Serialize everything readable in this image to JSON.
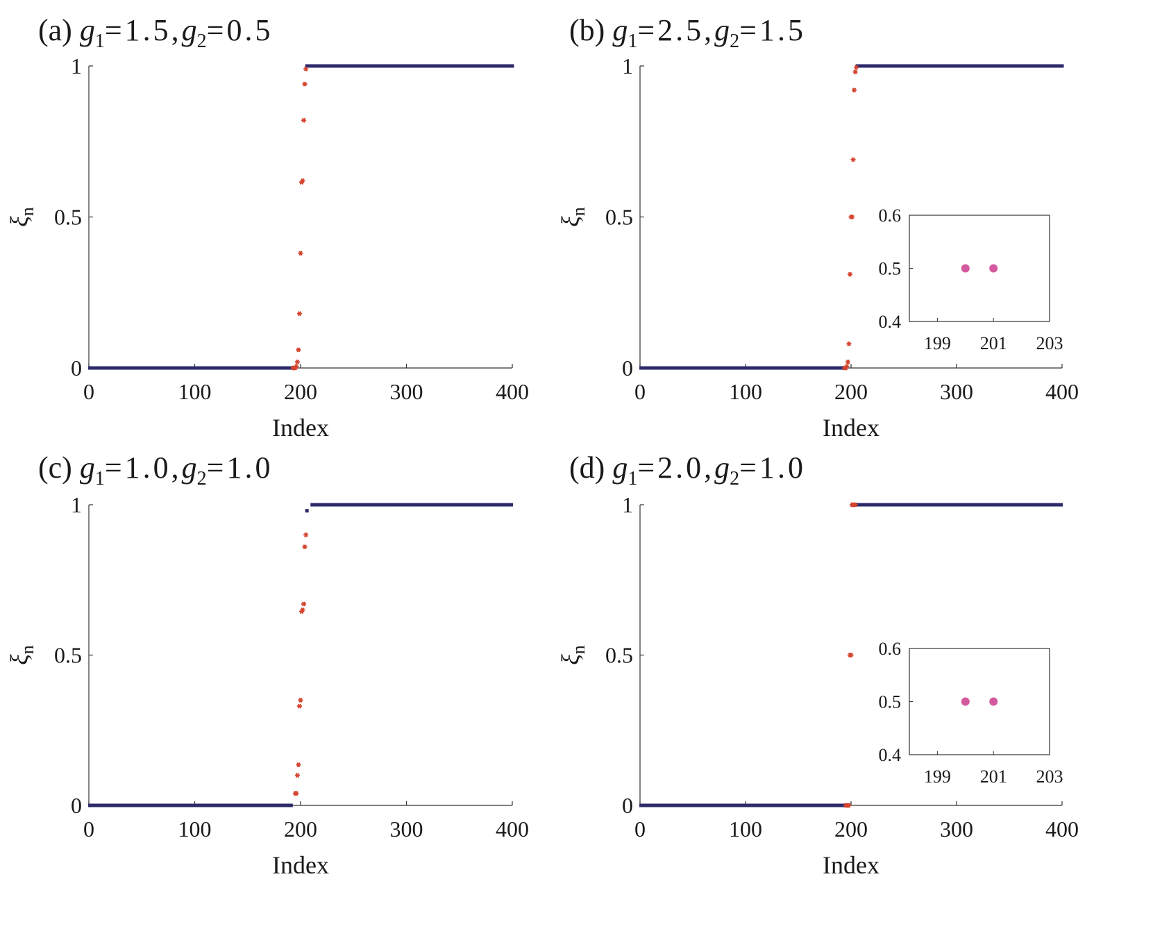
{
  "colors": {
    "bulk": "#2d2a6b",
    "edge": "#d4452f",
    "inset": "#d35a9e",
    "axis": "#333333"
  },
  "chart_data": [
    {
      "type": "scatter",
      "panel": "(a)",
      "title_parts": [
        "(a)",
        "g",
        "1",
        "=1.5,",
        "g",
        "2",
        "=0.5"
      ],
      "xlabel": "Index",
      "ylabel": "ξ",
      "ylabel_sub": "n",
      "xlim": [
        0,
        400
      ],
      "ylim": [
        0,
        1
      ],
      "xticks": [
        "0",
        "100",
        "200",
        "300",
        "400"
      ],
      "yticks": [
        "0",
        "0.5",
        "1"
      ],
      "bulk_low": {
        "from": 1,
        "to": 192,
        "y": 0
      },
      "bulk_high": {
        "from": 206,
        "to": 400,
        "y": 1
      },
      "edge_points": [
        [
          193,
          0
        ],
        [
          194,
          0
        ],
        [
          195,
          0
        ],
        [
          196,
          0.005
        ],
        [
          197,
          0.02
        ],
        [
          198,
          0.06
        ],
        [
          199,
          0.18
        ],
        [
          200,
          0.38
        ],
        [
          201,
          0.615
        ],
        [
          202,
          0.62
        ],
        [
          203,
          0.82
        ],
        [
          204,
          0.94
        ],
        [
          205,
          0.99
        ]
      ]
    },
    {
      "type": "scatter",
      "panel": "(b)",
      "title_parts": [
        "(b)",
        "g",
        "1",
        "=2.5,",
        "g",
        "2",
        "=1.5"
      ],
      "xlabel": "Index",
      "ylabel": "ξ",
      "ylabel_sub": "n",
      "xlim": [
        0,
        400
      ],
      "ylim": [
        0,
        1
      ],
      "xticks": [
        "0",
        "100",
        "200",
        "300",
        "400"
      ],
      "yticks": [
        "0",
        "0.5",
        "1"
      ],
      "bulk_low": {
        "from": 1,
        "to": 193,
        "y": 0
      },
      "bulk_high": {
        "from": 206,
        "to": 400,
        "y": 1
      },
      "edge_points": [
        [
          194,
          0
        ],
        [
          195,
          0
        ],
        [
          196,
          0.005
        ],
        [
          197,
          0.02
        ],
        [
          198,
          0.08
        ],
        [
          199,
          0.31
        ],
        [
          200,
          0.5
        ],
        [
          201,
          0.5
        ],
        [
          202,
          0.69
        ],
        [
          203,
          0.92
        ],
        [
          204,
          0.98
        ],
        [
          205,
          0.995
        ]
      ],
      "inset": {
        "xlim": [
          198,
          203
        ],
        "ylim": [
          0.4,
          0.6
        ],
        "xticks": [
          "199",
          "201",
          "203"
        ],
        "yticks": [
          "0.4",
          "0.5",
          "0.6"
        ],
        "points": [
          [
            200,
            0.5
          ],
          [
            201,
            0.5
          ]
        ]
      }
    },
    {
      "type": "scatter",
      "panel": "(c)",
      "title_parts": [
        "(c)",
        "g",
        "1",
        "=1.0,",
        "g",
        "2",
        "=1.0"
      ],
      "xlabel": "Index",
      "ylabel": "ξ",
      "ylabel_sub": "n",
      "xlim": [
        0,
        400
      ],
      "ylim": [
        0,
        1
      ],
      "xticks": [
        "0",
        "100",
        "200",
        "300",
        "400"
      ],
      "yticks": [
        "0",
        "0.5",
        "1"
      ],
      "bulk_low": {
        "from": 1,
        "to": 192,
        "y": 0
      },
      "bulk_high": {
        "from": 211,
        "to": 400,
        "y": 1
      },
      "bulk_extra": [
        [
          206,
          0.98
        ]
      ],
      "edge_points": [
        [
          195,
          0.04
        ],
        [
          196,
          0.04
        ],
        [
          197,
          0.1
        ],
        [
          198,
          0.135
        ],
        [
          199,
          0.33
        ],
        [
          200,
          0.35
        ],
        [
          201,
          0.645
        ],
        [
          202,
          0.65
        ],
        [
          203,
          0.67
        ],
        [
          204,
          0.86
        ],
        [
          205,
          0.9
        ]
      ]
    },
    {
      "type": "scatter",
      "panel": "(d)",
      "title_parts": [
        "(d)",
        "g",
        "1",
        "=2.0,",
        "g",
        "2",
        "=1.0"
      ],
      "xlabel": "Index",
      "ylabel": "ξ",
      "ylabel_sub": "n",
      "xlim": [
        0,
        400
      ],
      "ylim": [
        0,
        1
      ],
      "xticks": [
        "0",
        "100",
        "200",
        "300",
        "400"
      ],
      "yticks": [
        "0",
        "0.5",
        "1"
      ],
      "bulk_low": {
        "from": 1,
        "to": 194,
        "y": 0
      },
      "bulk_high": {
        "from": 205,
        "to": 400,
        "y": 1
      },
      "edge_points": [
        [
          195,
          0
        ],
        [
          196,
          0
        ],
        [
          197,
          0
        ],
        [
          198,
          0
        ],
        [
          199,
          0.5
        ],
        [
          200,
          0.5
        ],
        [
          201,
          1
        ],
        [
          202,
          1
        ],
        [
          203,
          1
        ],
        [
          204,
          1
        ]
      ],
      "inset": {
        "xlim": [
          198,
          203
        ],
        "ylim": [
          0.4,
          0.6
        ],
        "xticks": [
          "199",
          "201",
          "203"
        ],
        "yticks": [
          "0.4",
          "0.5",
          "0.6"
        ],
        "points": [
          [
            200,
            0.5
          ],
          [
            201,
            0.5
          ]
        ]
      }
    }
  ]
}
